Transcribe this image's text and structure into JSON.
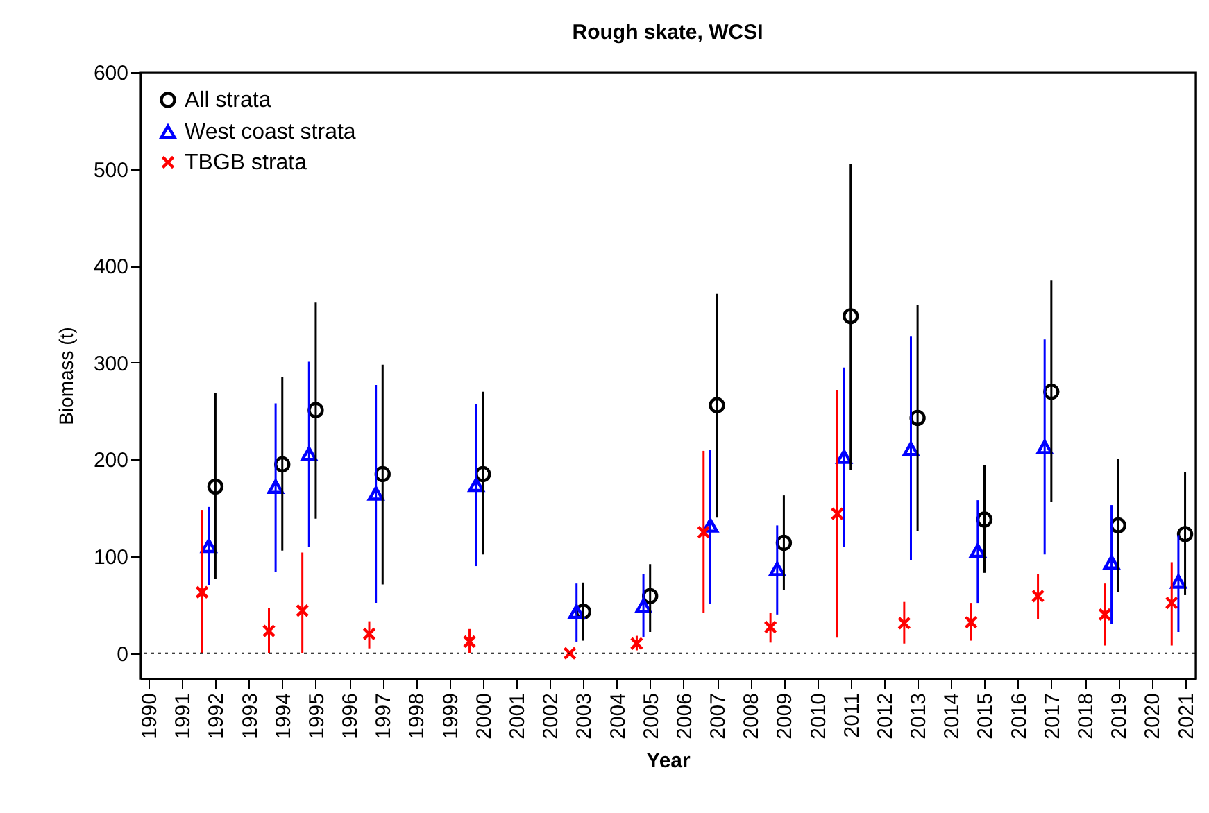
{
  "chart_data": {
    "type": "scatter",
    "title": "Rough skate, WCSI",
    "xlabel": "Year",
    "ylabel": "Biomass (t)",
    "xlim": [
      1989.75,
      2021.3
    ],
    "xticks": [
      1990,
      1991,
      1992,
      1993,
      1994,
      1995,
      1996,
      1997,
      1998,
      1999,
      2000,
      2001,
      2002,
      2003,
      2004,
      2005,
      2006,
      2007,
      2008,
      2009,
      2010,
      2011,
      2012,
      2013,
      2014,
      2015,
      2016,
      2017,
      2018,
      2019,
      2020,
      2021
    ],
    "ylim": [
      -26,
      600
    ],
    "yticks": [
      0,
      100,
      200,
      300,
      400,
      500,
      600
    ],
    "grid": false,
    "legend": "top left",
    "ref_lines": [
      {
        "axis": "y",
        "value": 0,
        "color": "#000000",
        "line_style": "dotted"
      }
    ],
    "series": [
      {
        "name": "All strata",
        "color": "#000000",
        "marker": "circle",
        "x": [
          1992,
          1994,
          1995,
          1997,
          2000,
          2003,
          2005,
          2007,
          2009,
          2011,
          2013,
          2015,
          2017,
          2019,
          2021
        ],
        "values": [
          172,
          195,
          251,
          185,
          185,
          43,
          59,
          256,
          114,
          348,
          243,
          138,
          270,
          132,
          123
        ],
        "errors": [
          [
            77,
            269
          ],
          [
            106,
            285
          ],
          [
            139,
            362
          ],
          [
            71,
            298
          ],
          [
            102,
            270
          ],
          [
            13,
            73
          ],
          [
            22,
            92
          ],
          [
            140,
            371
          ],
          [
            65,
            163
          ],
          [
            189,
            505
          ],
          [
            126,
            360
          ],
          [
            83,
            194
          ],
          [
            156,
            385
          ],
          [
            63,
            201
          ],
          [
            60,
            187
          ]
        ]
      },
      {
        "name": "West coast strata",
        "color": "#0000ff",
        "marker": "triangle",
        "x": [
          1991.8,
          1993.8,
          1994.8,
          1996.8,
          1999.8,
          2002.8,
          2004.8,
          2006.8,
          2008.8,
          2010.8,
          2012.8,
          2014.8,
          2016.8,
          2018.8,
          2020.8
        ],
        "values": [
          111,
          172,
          206,
          165,
          174,
          43,
          49,
          132,
          87,
          203,
          211,
          106,
          213,
          94,
          74
        ],
        "errors": [
          [
            70,
            151
          ],
          [
            84,
            258
          ],
          [
            110,
            301
          ],
          [
            52,
            277
          ],
          [
            90,
            257
          ],
          [
            12,
            72
          ],
          [
            17,
            82
          ],
          [
            51,
            210
          ],
          [
            40,
            132
          ],
          [
            110,
            295
          ],
          [
            96,
            327
          ],
          [
            52,
            158
          ],
          [
            102,
            324
          ],
          [
            30,
            153
          ],
          [
            22,
            122
          ]
        ]
      },
      {
        "name": "TBGB strata",
        "color": "#ff0000",
        "marker": "cross",
        "x": [
          1991.6,
          1993.6,
          1994.6,
          1996.6,
          1999.6,
          2002.6,
          2004.6,
          2006.6,
          2008.6,
          2010.6,
          2012.6,
          2014.6,
          2016.6,
          2018.6,
          2020.6
        ],
        "values": [
          63,
          23,
          44,
          20,
          12,
          0,
          10,
          125,
          27,
          144,
          31,
          32,
          59,
          40,
          52
        ],
        "errors": [
          [
            0,
            148
          ],
          [
            0,
            47
          ],
          [
            0,
            104
          ],
          [
            5,
            33
          ],
          [
            0,
            25
          ],
          null,
          [
            3,
            18
          ],
          [
            42,
            209
          ],
          [
            11,
            42
          ],
          [
            16,
            272
          ],
          [
            10,
            53
          ],
          [
            13,
            52
          ],
          [
            35,
            82
          ],
          [
            8,
            72
          ],
          [
            8,
            94
          ]
        ]
      }
    ]
  }
}
